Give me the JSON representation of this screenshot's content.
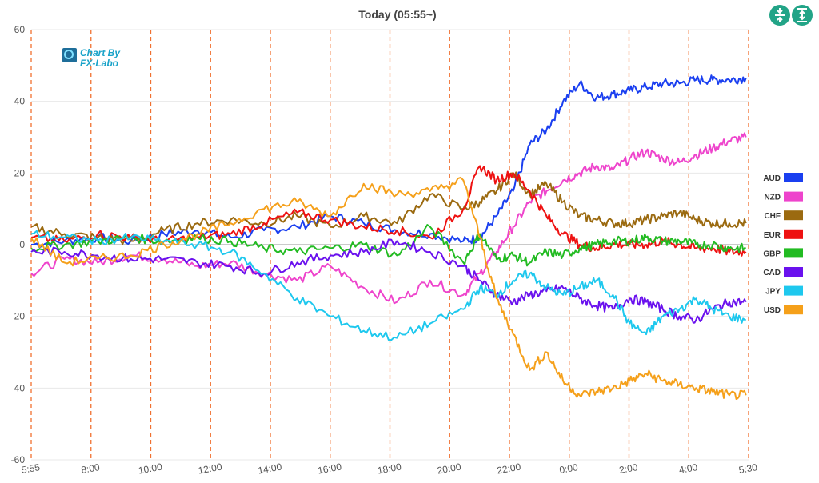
{
  "toolbar": {
    "buttons": [
      {
        "name": "collapse-icon"
      },
      {
        "name": "expand-icon"
      }
    ]
  },
  "logo": {
    "line1": "Chart By",
    "line2": "FX-Labo",
    "accent": "#1aa3c9"
  },
  "colors": {
    "zero_line": "#aaaaaa",
    "grid": "#e8e8e8",
    "session_line": "#f07030",
    "button": "#22a487"
  },
  "chart_data": {
    "type": "line",
    "title": "Today (05:55~)",
    "x_ticks": [
      "5:55",
      "8:00",
      "10:00",
      "12:00",
      "14:00",
      "16:00",
      "18:00",
      "20:00",
      "22:00",
      "0:00",
      "2:00",
      "4:00",
      "5:30"
    ],
    "xlim": [
      "5:55",
      "5:30"
    ],
    "ylim": [
      -60,
      60
    ],
    "y_ticks": [
      60,
      40,
      20,
      0,
      -20,
      -40,
      -60
    ],
    "vertical_guides": "dashed at each x tick",
    "grid": true,
    "legend_position": "right",
    "series": [
      {
        "name": "AUD",
        "color": "#1a3ff0",
        "points": [
          [
            0,
            0
          ],
          [
            1,
            1
          ],
          [
            2,
            2
          ],
          [
            3,
            1
          ],
          [
            4,
            3
          ],
          [
            5,
            4
          ],
          [
            6,
            2
          ],
          [
            7,
            4
          ],
          [
            8,
            5
          ],
          [
            9,
            8
          ],
          [
            10,
            6
          ],
          [
            11,
            4
          ],
          [
            12,
            3
          ],
          [
            13,
            1
          ],
          [
            13.5,
            2
          ],
          [
            14,
            8
          ],
          [
            14.5,
            15
          ],
          [
            15,
            28
          ],
          [
            15.5,
            32
          ],
          [
            16,
            40
          ],
          [
            16.5,
            45
          ],
          [
            17,
            41
          ],
          [
            17.5,
            42
          ],
          [
            18,
            43
          ],
          [
            18.5,
            44
          ],
          [
            19,
            45
          ],
          [
            19.5,
            45
          ],
          [
            20,
            46
          ],
          [
            20.5,
            46
          ],
          [
            21,
            46
          ],
          [
            21.5,
            46.5
          ]
        ]
      },
      {
        "name": "NZD",
        "color": "#ee44cc",
        "points": [
          [
            0,
            -8
          ],
          [
            1,
            -4
          ],
          [
            2,
            -5
          ],
          [
            3,
            -3
          ],
          [
            4,
            -4
          ],
          [
            5,
            -6
          ],
          [
            6,
            -5
          ],
          [
            7,
            -8
          ],
          [
            8,
            -10
          ],
          [
            9,
            -6
          ],
          [
            10,
            -12
          ],
          [
            11,
            -16
          ],
          [
            12,
            -10
          ],
          [
            13,
            -14
          ],
          [
            13.5,
            -8
          ],
          [
            14,
            -2
          ],
          [
            14.5,
            5
          ],
          [
            15,
            12
          ],
          [
            15.5,
            15
          ],
          [
            16,
            18
          ],
          [
            16.5,
            20
          ],
          [
            17,
            22
          ],
          [
            17.5,
            21
          ],
          [
            18,
            24
          ],
          [
            18.5,
            26
          ],
          [
            19,
            24
          ],
          [
            19.5,
            23
          ],
          [
            20,
            25
          ],
          [
            20.5,
            27
          ],
          [
            21,
            29
          ],
          [
            21.5,
            30
          ]
        ]
      },
      {
        "name": "CHF",
        "color": "#9b6a10",
        "points": [
          [
            0,
            5
          ],
          [
            1,
            3
          ],
          [
            2,
            2
          ],
          [
            3,
            1
          ],
          [
            4,
            4
          ],
          [
            5,
            6
          ],
          [
            6,
            7
          ],
          [
            7,
            6
          ],
          [
            8,
            8
          ],
          [
            9,
            5
          ],
          [
            10,
            8
          ],
          [
            11,
            6
          ],
          [
            12,
            14
          ],
          [
            13,
            10
          ],
          [
            13.5,
            12
          ],
          [
            14,
            15
          ],
          [
            14.5,
            20
          ],
          [
            15,
            14
          ],
          [
            15.5,
            17
          ],
          [
            16,
            12
          ],
          [
            16.5,
            8
          ],
          [
            17,
            7
          ],
          [
            17.5,
            6
          ],
          [
            18,
            6
          ],
          [
            18.5,
            7
          ],
          [
            19,
            8
          ],
          [
            19.5,
            9
          ],
          [
            20,
            7
          ],
          [
            20.5,
            6
          ],
          [
            21,
            6
          ],
          [
            21.5,
            6
          ]
        ]
      },
      {
        "name": "EUR",
        "color": "#ee1111",
        "points": [
          [
            0,
            2
          ],
          [
            1,
            1
          ],
          [
            2,
            3
          ],
          [
            3,
            2
          ],
          [
            4,
            1
          ],
          [
            5,
            2
          ],
          [
            6,
            3
          ],
          [
            7,
            6
          ],
          [
            8,
            9
          ],
          [
            9,
            7
          ],
          [
            10,
            5
          ],
          [
            11,
            4
          ],
          [
            12,
            2
          ],
          [
            13,
            10
          ],
          [
            13.5,
            22
          ],
          [
            14,
            18
          ],
          [
            14.5,
            20
          ],
          [
            15,
            15
          ],
          [
            15.5,
            8
          ],
          [
            16,
            3
          ],
          [
            16.5,
            0
          ],
          [
            17,
            -1
          ],
          [
            17.5,
            0
          ],
          [
            18,
            0
          ],
          [
            18.5,
            0
          ],
          [
            19,
            1
          ],
          [
            19.5,
            0
          ],
          [
            20,
            -1
          ],
          [
            20.5,
            -1
          ],
          [
            21,
            -2
          ],
          [
            21.5,
            -2
          ]
        ]
      },
      {
        "name": "GBP",
        "color": "#22bb22",
        "points": [
          [
            0,
            -1
          ],
          [
            1,
            0
          ],
          [
            2,
            1
          ],
          [
            3,
            2
          ],
          [
            4,
            1
          ],
          [
            5,
            2
          ],
          [
            6,
            1
          ],
          [
            7,
            -1
          ],
          [
            8,
            -2
          ],
          [
            9,
            -1
          ],
          [
            10,
            0
          ],
          [
            11,
            -3
          ],
          [
            12,
            5
          ],
          [
            13,
            -5
          ],
          [
            13.5,
            3
          ],
          [
            14,
            -4
          ],
          [
            14.5,
            -3
          ],
          [
            15,
            -5
          ],
          [
            15.5,
            -2
          ],
          [
            16,
            -3
          ],
          [
            16.5,
            -1
          ],
          [
            17,
            0
          ],
          [
            17.5,
            1
          ],
          [
            18,
            1
          ],
          [
            18.5,
            2
          ],
          [
            19,
            1
          ],
          [
            19.5,
            1
          ],
          [
            20,
            0
          ],
          [
            20.5,
            0
          ],
          [
            21,
            -1
          ],
          [
            21.5,
            -1
          ]
        ]
      },
      {
        "name": "CAD",
        "color": "#6a11ee",
        "points": [
          [
            0,
            -2
          ],
          [
            1,
            -2
          ],
          [
            2,
            -3
          ],
          [
            3,
            -4
          ],
          [
            4,
            -4
          ],
          [
            5,
            -5
          ],
          [
            6,
            -6
          ],
          [
            7,
            -8
          ],
          [
            8,
            -5
          ],
          [
            9,
            -3
          ],
          [
            10,
            -2
          ],
          [
            11,
            1
          ],
          [
            12,
            -2
          ],
          [
            13,
            -6
          ],
          [
            13.5,
            -10
          ],
          [
            14,
            -14
          ],
          [
            14.5,
            -16
          ],
          [
            15,
            -14
          ],
          [
            15.5,
            -13
          ],
          [
            16,
            -12
          ],
          [
            16.5,
            -15
          ],
          [
            17,
            -17
          ],
          [
            17.5,
            -18
          ],
          [
            18,
            -15
          ],
          [
            18.5,
            -16
          ],
          [
            19,
            -18
          ],
          [
            19.5,
            -20
          ],
          [
            20,
            -21
          ],
          [
            20.5,
            -18
          ],
          [
            21,
            -16
          ],
          [
            21.5,
            -16
          ]
        ]
      },
      {
        "name": "JPY",
        "color": "#1ec8ee",
        "points": [
          [
            0,
            3
          ],
          [
            1,
            2
          ],
          [
            2,
            1
          ],
          [
            3,
            2
          ],
          [
            4,
            1
          ],
          [
            5,
            0
          ],
          [
            6,
            -2
          ],
          [
            7,
            -8
          ],
          [
            8,
            -15
          ],
          [
            9,
            -20
          ],
          [
            10,
            -24
          ],
          [
            11,
            -26
          ],
          [
            12,
            -22
          ],
          [
            13,
            -18
          ],
          [
            13.5,
            -12
          ],
          [
            14,
            -14
          ],
          [
            14.5,
            -10
          ],
          [
            15,
            -8
          ],
          [
            15.5,
            -12
          ],
          [
            16,
            -14
          ],
          [
            16.5,
            -12
          ],
          [
            17,
            -10
          ],
          [
            17.5,
            -14
          ],
          [
            18,
            -22
          ],
          [
            18.5,
            -25
          ],
          [
            19,
            -20
          ],
          [
            19.5,
            -18
          ],
          [
            20,
            -15
          ],
          [
            20.5,
            -18
          ],
          [
            21,
            -20
          ],
          [
            21.5,
            -21
          ]
        ]
      },
      {
        "name": "USD",
        "color": "#f5a01a",
        "points": [
          [
            0,
            2
          ],
          [
            1,
            -5
          ],
          [
            2,
            -4
          ],
          [
            3,
            -3
          ],
          [
            4,
            0
          ],
          [
            5,
            3
          ],
          [
            6,
            6
          ],
          [
            7,
            10
          ],
          [
            8,
            12
          ],
          [
            9,
            8
          ],
          [
            10,
            17
          ],
          [
            11,
            14
          ],
          [
            12,
            15
          ],
          [
            13,
            18
          ],
          [
            13.5,
            2
          ],
          [
            14,
            -15
          ],
          [
            14.5,
            -25
          ],
          [
            15,
            -35
          ],
          [
            15.5,
            -30
          ],
          [
            16,
            -38
          ],
          [
            16.5,
            -42
          ],
          [
            17,
            -41
          ],
          [
            17.5,
            -40
          ],
          [
            18,
            -38
          ],
          [
            18.5,
            -36
          ],
          [
            19,
            -38
          ],
          [
            19.5,
            -39
          ],
          [
            20,
            -40
          ],
          [
            20.5,
            -41
          ],
          [
            21,
            -42
          ],
          [
            21.5,
            -42
          ]
        ]
      }
    ]
  }
}
